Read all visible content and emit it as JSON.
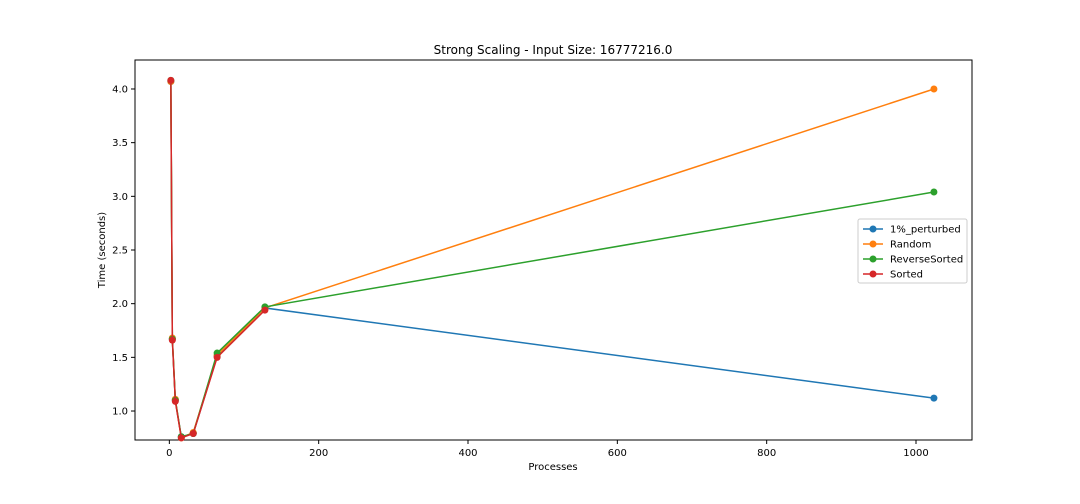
{
  "chart_data": {
    "type": "line",
    "title": "Strong Scaling - Input Size: 16777216.0",
    "xlabel": "Processes",
    "ylabel": "Time (seconds)",
    "xlim": [
      -46,
      1075
    ],
    "ylim": [
      0.73,
      4.27
    ],
    "xticks": [
      0,
      200,
      400,
      600,
      800,
      1000
    ],
    "xtick_labels": [
      "0",
      "200",
      "400",
      "600",
      "800",
      "1000"
    ],
    "yticks": [
      1.0,
      1.5,
      2.0,
      2.5,
      3.0,
      3.5,
      4.0
    ],
    "ytick_labels": [
      "1.0",
      "1.5",
      "2.0",
      "2.5",
      "3.0",
      "3.5",
      "4.0"
    ],
    "grid": false,
    "legend_position": "center-right",
    "x": [
      2,
      4,
      8,
      16,
      32,
      64,
      128,
      1024
    ],
    "series": [
      {
        "name": "1%_perturbed",
        "color": "#1f77b4",
        "values": [
          4.07,
          1.67,
          1.1,
          0.76,
          0.79,
          1.51,
          1.96,
          1.12
        ]
      },
      {
        "name": "Random",
        "color": "#ff7f0e",
        "values": [
          4.07,
          1.68,
          1.11,
          0.75,
          0.8,
          1.52,
          1.96,
          4.0
        ]
      },
      {
        "name": "ReverseSorted",
        "color": "#2ca02c",
        "values": [
          4.08,
          1.67,
          1.1,
          0.76,
          0.79,
          1.54,
          1.97,
          3.04
        ]
      },
      {
        "name": "Sorted",
        "color": "#d62728",
        "values": [
          4.08,
          1.66,
          1.09,
          0.75,
          0.79,
          1.5,
          1.94,
          null
        ]
      }
    ]
  }
}
